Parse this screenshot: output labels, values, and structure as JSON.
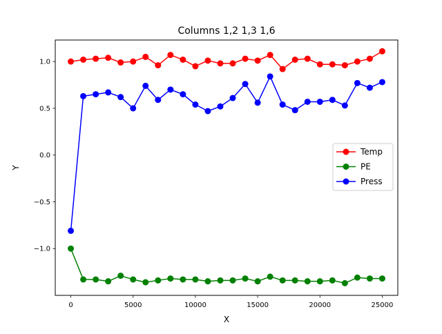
{
  "chart_data": {
    "type": "line",
    "title": "Columns 1,2 1,3 1,6",
    "xlabel": "X",
    "ylabel": "Y",
    "xlim": [
      -1250,
      26250
    ],
    "ylim": [
      -1.5,
      1.23
    ],
    "x_ticks": [
      0,
      5000,
      10000,
      15000,
      20000,
      25000
    ],
    "x_tick_labels": [
      "0",
      "5000",
      "10000",
      "15000",
      "20000",
      "25000"
    ],
    "y_ticks": [
      -1.0,
      -0.5,
      0.0,
      0.5,
      1.0
    ],
    "y_tick_labels": [
      "−1.0",
      "−0.5",
      "0.0",
      "0.5",
      "1.0"
    ],
    "grid": false,
    "legend_position": "center-right",
    "x": [
      0,
      1000,
      2000,
      3000,
      4000,
      5000,
      6000,
      7000,
      8000,
      9000,
      10000,
      11000,
      12000,
      13000,
      14000,
      15000,
      16000,
      17000,
      18000,
      19000,
      20000,
      21000,
      22000,
      23000,
      24000,
      25000
    ],
    "series": [
      {
        "name": "Temp",
        "color": "#ff0000",
        "values": [
          1.0,
          1.02,
          1.03,
          1.04,
          0.99,
          1.0,
          1.05,
          0.96,
          1.07,
          1.02,
          0.95,
          1.01,
          0.98,
          0.98,
          1.03,
          1.01,
          1.07,
          0.92,
          1.02,
          1.03,
          0.97,
          0.97,
          0.96,
          1.0,
          1.03,
          1.11
        ]
      },
      {
        "name": "PE",
        "color": "#008000",
        "values": [
          -1.0,
          -1.33,
          -1.33,
          -1.35,
          -1.29,
          -1.33,
          -1.36,
          -1.34,
          -1.32,
          -1.33,
          -1.33,
          -1.35,
          -1.34,
          -1.34,
          -1.32,
          -1.35,
          -1.3,
          -1.34,
          -1.34,
          -1.35,
          -1.35,
          -1.34,
          -1.37,
          -1.31,
          -1.32,
          -1.32
        ]
      },
      {
        "name": "Press",
        "color": "#0000ff",
        "values": [
          -0.81,
          0.63,
          0.65,
          0.67,
          0.62,
          0.5,
          0.74,
          0.59,
          0.7,
          0.65,
          0.54,
          0.47,
          0.52,
          0.61,
          0.76,
          0.56,
          0.84,
          0.54,
          0.48,
          0.57,
          0.57,
          0.59,
          0.53,
          0.77,
          0.72,
          0.78
        ]
      }
    ]
  }
}
